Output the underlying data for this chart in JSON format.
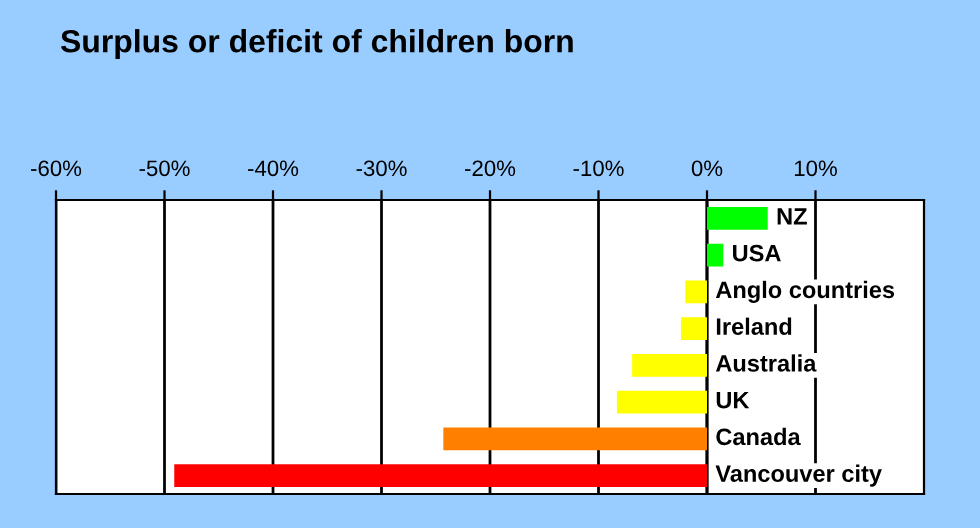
{
  "chart_data": {
    "type": "bar",
    "orientation": "horizontal",
    "title": "Surplus or deficit of children born",
    "categories": [
      "NZ",
      "USA",
      "Anglo countries",
      "Ireland",
      "Australia",
      "UK",
      "Canada",
      "Vancouver city"
    ],
    "values": [
      5.6,
      1.5,
      -2.0,
      -2.4,
      -6.9,
      -8.3,
      -24.3,
      -49.1
    ],
    "colors": [
      "#00ff00",
      "#00ff00",
      "#ffff00",
      "#ffff00",
      "#ffff00",
      "#ffff00",
      "#ff8000",
      "#ff0000"
    ],
    "xlim": [
      -60,
      20
    ],
    "xticks": [
      {
        "value": -60,
        "label": "-60%"
      },
      {
        "value": -50,
        "label": "-50%"
      },
      {
        "value": -40,
        "label": "-40%"
      },
      {
        "value": -30,
        "label": "-30%"
      },
      {
        "value": -20,
        "label": "-20%"
      },
      {
        "value": -10,
        "label": "-10%"
      },
      {
        "value": 0,
        "label": "0%"
      },
      {
        "value": 10,
        "label": "10%"
      }
    ],
    "grid": "x"
  }
}
